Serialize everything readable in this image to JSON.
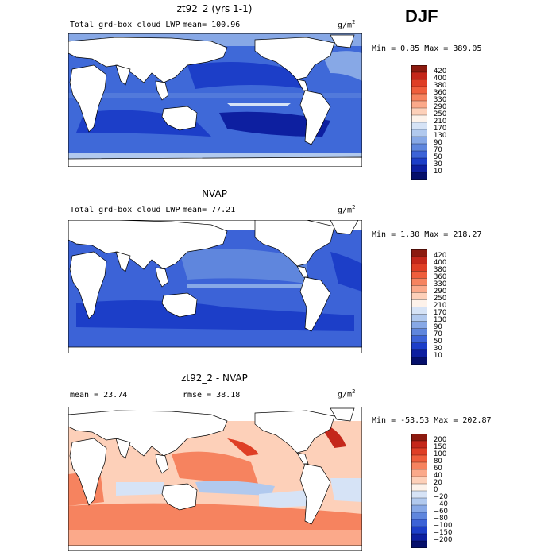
{
  "season": "DJF",
  "panels": [
    {
      "title": "zt92_2 (yrs 1-1)",
      "left_text": "Total grd-box cloud LWP",
      "stat_text": "mean=  100.96",
      "units": "g/m",
      "units_sup": "2",
      "minmax": "Min =    0.85 Max = 389.05",
      "palette": "blues",
      "levels": [
        "420",
        "400",
        "380",
        "360",
        "330",
        "290",
        "250",
        "210",
        "170",
        "130",
        "90",
        "70",
        "50",
        "30",
        "10"
      ],
      "colors": [
        "#8c1a0f",
        "#c4271a",
        "#df3e25",
        "#ef5e3c",
        "#f6835f",
        "#fba98a",
        "#fdd0b9",
        "#fdf2ea",
        "#d6e3f6",
        "#b1c9ee",
        "#87a8e6",
        "#5f86dd",
        "#3c63d7",
        "#1c3ec8",
        "#0d1fa0",
        "#050f6b"
      ]
    },
    {
      "title": "NVAP",
      "left_text": "Total grd-box cloud LWP",
      "stat_text": "mean=   77.21",
      "units": "g/m",
      "units_sup": "2",
      "minmax": "Min =    1.30 Max = 218.27",
      "palette": "blues",
      "levels": [
        "420",
        "400",
        "380",
        "360",
        "330",
        "290",
        "250",
        "210",
        "170",
        "130",
        "90",
        "70",
        "50",
        "30",
        "10"
      ],
      "colors": [
        "#8c1a0f",
        "#c4271a",
        "#df3e25",
        "#ef5e3c",
        "#f6835f",
        "#fba98a",
        "#fdd0b9",
        "#fdf2ea",
        "#d6e3f6",
        "#b1c9ee",
        "#87a8e6",
        "#5f86dd",
        "#3c63d7",
        "#1c3ec8",
        "#0d1fa0",
        "#050f6b"
      ]
    },
    {
      "title": "zt92_2 - NVAP",
      "left_text": "mean =   23.74",
      "stat_text": "rmse =   38.18",
      "units": "g/m",
      "units_sup": "2",
      "minmax": "Min = -53.53 Max = 202.87",
      "palette": "diff",
      "levels": [
        "200",
        "150",
        "100",
        "80",
        "60",
        "40",
        "20",
        "0",
        "−20",
        "−40",
        "−60",
        "−80",
        "−100",
        "−150",
        "−200"
      ],
      "colors": [
        "#8c1a0f",
        "#c4271a",
        "#df3e25",
        "#ef5e3c",
        "#f6835f",
        "#fba98a",
        "#fdd0b9",
        "#fdf2ea",
        "#d6e3f6",
        "#b1c9ee",
        "#87a8e6",
        "#5f86dd",
        "#3c63d7",
        "#1c3ec8",
        "#0d1fa0",
        "#050f6b"
      ]
    }
  ]
}
